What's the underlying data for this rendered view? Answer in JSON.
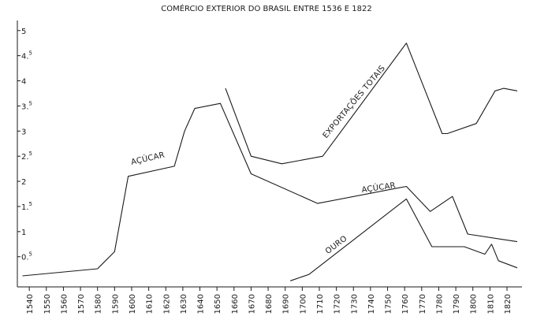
{
  "chart_data": {
    "type": "line",
    "title": "COMÉRCIO EXTERIOR DO BRASIL ENTRE 1536 E 1822",
    "xlabel": "",
    "ylabel": "",
    "xlim": [
      1533,
      1826
    ],
    "ylim": [
      -0.1,
      5.2
    ],
    "x_ticks": [
      1540,
      1550,
      1560,
      1570,
      1580,
      1590,
      1600,
      1610,
      1620,
      1630,
      1640,
      1650,
      1660,
      1670,
      1680,
      1690,
      1700,
      1710,
      1720,
      1730,
      1740,
      1750,
      1760,
      1770,
      1780,
      1790,
      1800,
      1810,
      1820
    ],
    "x_tick_labels": [
      "1540",
      "1550",
      "1560",
      "1570",
      "1580",
      "1590",
      "1600",
      "1610",
      "1620",
      "1630",
      "1640",
      "1650",
      "1660",
      "1670",
      "1680",
      "1690",
      "1700",
      "1710",
      "1720",
      "1730",
      "1740",
      "1750",
      "1760",
      "1770",
      "1780",
      "1790",
      "1800",
      "1810",
      "1820"
    ],
    "y_ticks": [
      {
        "value": 0.5,
        "label": "0.",
        "sup": "5"
      },
      {
        "value": 1,
        "label": "1",
        "sup": ""
      },
      {
        "value": 1.5,
        "label": "1.",
        "sup": "5"
      },
      {
        "value": 2,
        "label": "2",
        "sup": ""
      },
      {
        "value": 2.5,
        "label": "2.",
        "sup": "5"
      },
      {
        "value": 3,
        "label": "3",
        "sup": ""
      },
      {
        "value": 3.5,
        "label": "3.",
        "sup": "5"
      },
      {
        "value": 4,
        "label": "4",
        "sup": ""
      },
      {
        "value": 4.5,
        "label": "4.",
        "sup": "5"
      },
      {
        "value": 5,
        "label": "5",
        "sup": ""
      }
    ],
    "grid": false,
    "legend": "none",
    "series": [
      {
        "id": "acucar",
        "points": [
          [
            1536,
            0.12
          ],
          [
            1580,
            0.26
          ],
          [
            1590,
            0.6
          ],
          [
            1598,
            2.1
          ],
          [
            1625,
            2.3
          ],
          [
            1631,
            3.0
          ],
          [
            1637,
            3.45
          ],
          [
            1652,
            3.55
          ],
          [
            1670,
            2.15
          ],
          [
            1709,
            1.56
          ],
          [
            1761,
            1.9
          ],
          [
            1775,
            1.4
          ],
          [
            1788,
            1.7
          ],
          [
            1797,
            0.95
          ],
          [
            1826,
            0.8
          ]
        ]
      },
      {
        "id": "exportacoes",
        "points": [
          [
            1655,
            3.85
          ],
          [
            1670,
            2.5
          ],
          [
            1688,
            2.35
          ],
          [
            1712,
            2.5
          ],
          [
            1761,
            4.75
          ],
          [
            1782,
            2.95
          ],
          [
            1785,
            2.95
          ],
          [
            1802,
            3.15
          ],
          [
            1813,
            3.8
          ],
          [
            1818,
            3.85
          ],
          [
            1826,
            3.8
          ]
        ]
      },
      {
        "id": "ouro",
        "points": [
          [
            1693,
            0.02
          ],
          [
            1704,
            0.15
          ],
          [
            1761,
            1.65
          ],
          [
            1776,
            0.7
          ],
          [
            1795,
            0.7
          ],
          [
            1807,
            0.55
          ],
          [
            1811,
            0.75
          ],
          [
            1815,
            0.42
          ],
          [
            1826,
            0.28
          ]
        ]
      }
    ],
    "annotations": [
      {
        "text": "AÇÚCAR",
        "series": "acucar",
        "x": 1600,
        "y": 2.33,
        "angle": -13
      },
      {
        "text": "AÇÚCAR",
        "series": "acucar",
        "x": 1735,
        "y": 1.78,
        "angle": -8
      },
      {
        "text": "EXPORTAÇÕES TOTAIS",
        "series": "exportacoes",
        "x": 1714,
        "y": 2.85,
        "angle": -50
      },
      {
        "text": "OURO",
        "series": "ouro",
        "x": 1715,
        "y": 0.55,
        "angle": -37
      }
    ]
  }
}
